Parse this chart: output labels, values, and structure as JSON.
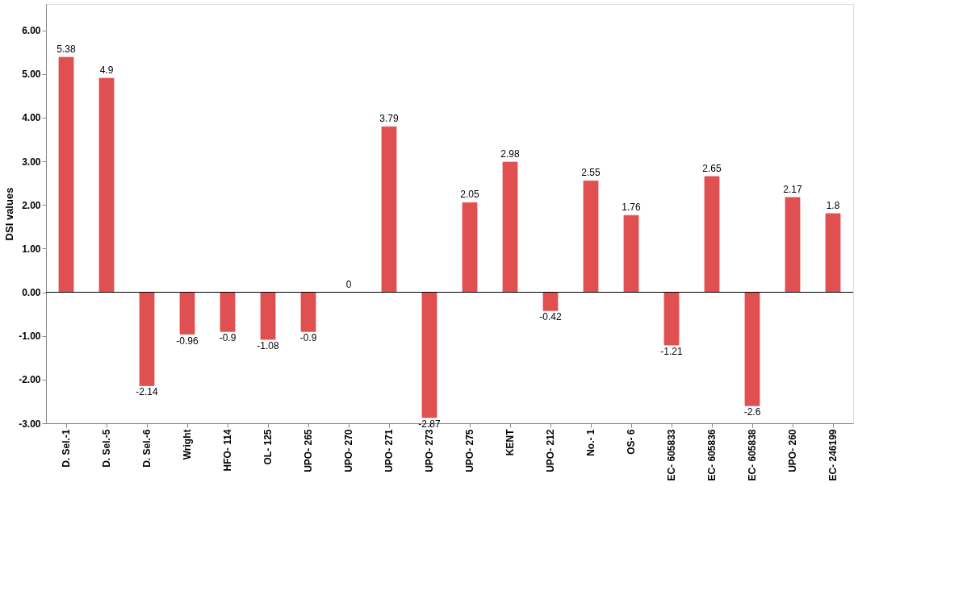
{
  "chart_data": {
    "type": "bar",
    "ylabel": "DSI values",
    "categories": [
      "D. Sel.-1",
      "D. Sel.-5",
      "D. Sel.-6",
      "Wright",
      "HFO- 114",
      "OL- 125",
      "UPO- 265",
      "UPO- 270",
      "UPO- 271",
      "UPO- 273",
      "UPO- 275",
      "KENT",
      "UPO- 212",
      "No.- 1",
      "OS- 6",
      "EC- 605833",
      "EC- 605836",
      "EC- 605838",
      "UPO- 260",
      "EC- 246199"
    ],
    "values": [
      5.38,
      4.9,
      -2.14,
      -0.96,
      -0.9,
      -1.08,
      -0.9,
      0,
      3.79,
      -2.87,
      2.05,
      2.98,
      -0.42,
      2.55,
      1.76,
      -1.21,
      2.65,
      -2.6,
      2.17,
      1.8
    ],
    "color": "#e05050",
    "ylim": [
      -3,
      6.6
    ],
    "yticks": [
      {
        "value": -3,
        "label": "-3.00"
      },
      {
        "value": -2,
        "label": "-2.00"
      },
      {
        "value": -1,
        "label": "-1.00"
      },
      {
        "value": 0,
        "label": "0.00"
      },
      {
        "value": 1,
        "label": "1.00"
      },
      {
        "value": 2,
        "label": "2.00"
      },
      {
        "value": 3,
        "label": "3.00"
      },
      {
        "value": 4,
        "label": "4.00"
      },
      {
        "value": 5,
        "label": "5.00"
      },
      {
        "value": 6,
        "label": "6.00"
      }
    ],
    "ref_lines": [
      {
        "axis": "y",
        "value": 0,
        "color": "#000000"
      }
    ],
    "data_labels": true,
    "grid": false
  }
}
